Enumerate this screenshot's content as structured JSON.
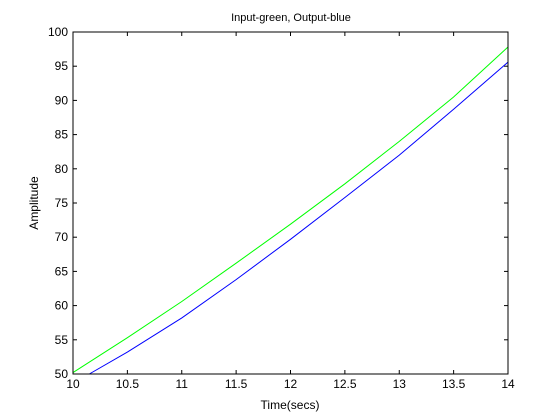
{
  "chart_data": {
    "type": "line",
    "title": "Input-green, Output-blue",
    "xlabel": "Time(secs)",
    "ylabel": "Amplitude",
    "xlim": [
      10,
      14
    ],
    "ylim": [
      50,
      100
    ],
    "x_ticks": [
      10,
      10.5,
      11,
      11.5,
      12,
      12.5,
      13,
      13.5,
      14
    ],
    "x_tick_labels": [
      "10",
      "10.5",
      "11",
      "11.5",
      "12",
      "12.5",
      "13",
      "13.5",
      "14"
    ],
    "y_ticks": [
      50,
      55,
      60,
      65,
      70,
      75,
      80,
      85,
      90,
      95,
      100
    ],
    "y_tick_labels": [
      "50",
      "55",
      "60",
      "65",
      "70",
      "75",
      "80",
      "85",
      "90",
      "95",
      "100"
    ],
    "grid": false,
    "legend": "none",
    "series": [
      {
        "color": "#00ff00",
        "x": [
          10,
          10.5,
          11,
          11.5,
          12,
          12.5,
          13,
          13.5,
          14
        ],
        "y": [
          50.2,
          55.3,
          60.6,
          66.2,
          71.9,
          77.8,
          84.0,
          90.5,
          97.8
        ]
      },
      {
        "color": "#0000ff",
        "x": [
          10.15,
          10.5,
          11,
          11.5,
          12,
          12.5,
          13,
          13.5,
          14
        ],
        "y": [
          50.0,
          53.2,
          58.2,
          63.8,
          69.7,
          75.8,
          82.0,
          88.7,
          95.6
        ]
      }
    ]
  }
}
